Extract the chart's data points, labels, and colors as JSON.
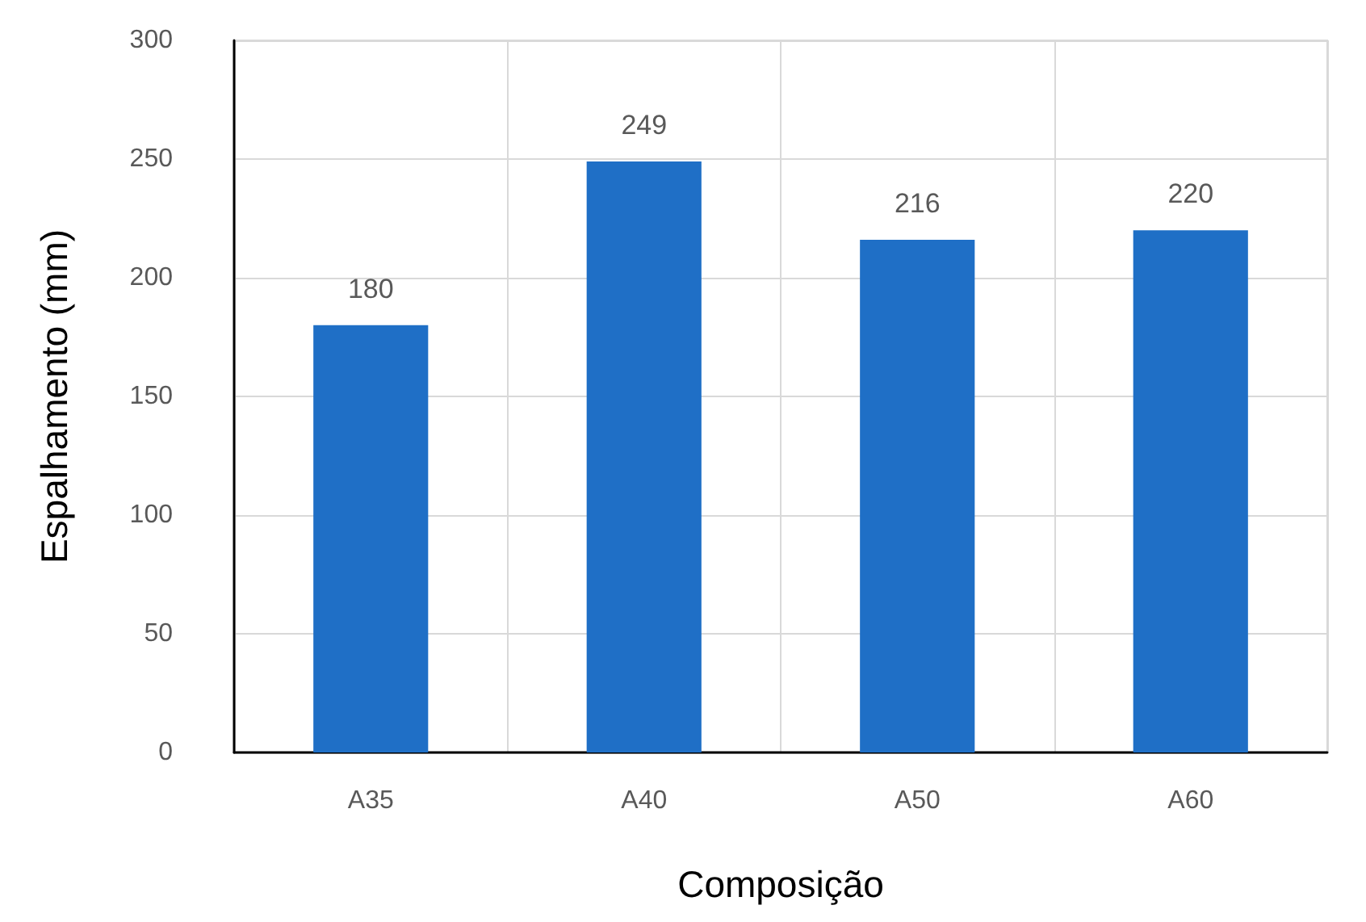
{
  "chart_data": {
    "type": "bar",
    "xlabel": "Composição",
    "ylabel": "Espalhamento (mm)",
    "categories": [
      "A35",
      "A40",
      "A50",
      "A60"
    ],
    "values": [
      180,
      249,
      216,
      220
    ],
    "color": "#1f6fc6",
    "ylim": [
      0,
      300
    ],
    "yticks": [
      0,
      50,
      100,
      150,
      200,
      250,
      300
    ],
    "grid": true,
    "data_labels": true
  }
}
